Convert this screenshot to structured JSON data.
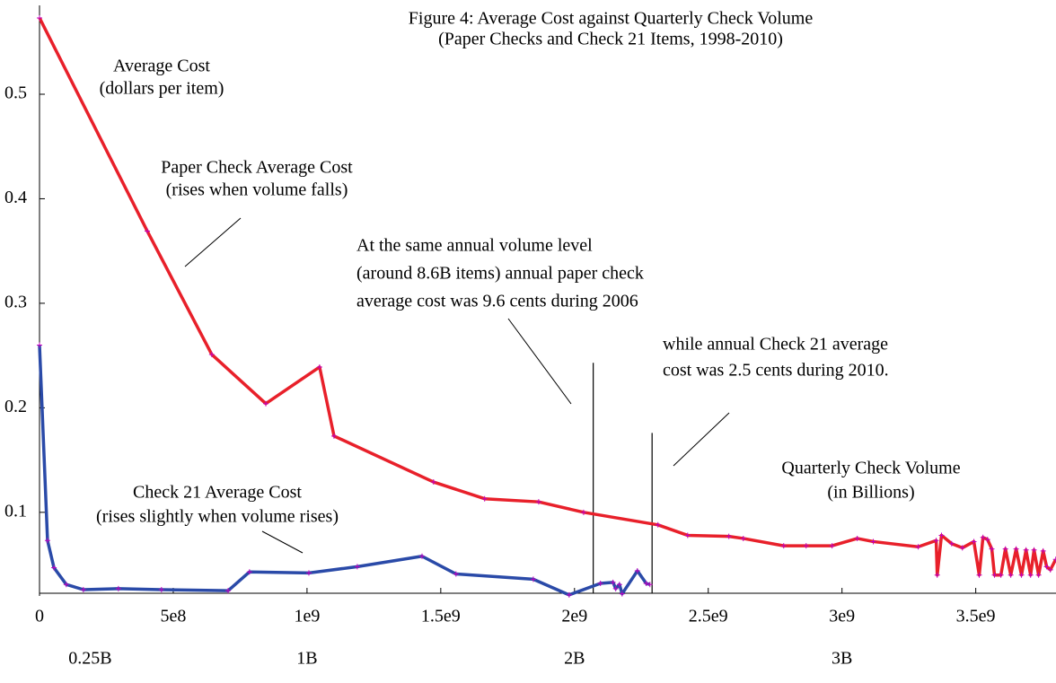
{
  "chart_data": {
    "type": "line",
    "title": "Figure 4: Average Cost against Quarterly Check Volume",
    "subtitle": "(Paper Checks and Check 21 Items, 1998-2010)",
    "ylabel": [
      "Average Cost",
      "(dollars per item)"
    ],
    "xlabel": [
      "Quarterly Check Volume",
      "(in Billions)"
    ],
    "annotations": [
      [
        "Paper Check Average Cost",
        "(rises when volume falls)"
      ],
      [
        "At the same annual volume level",
        "(around 8.6B items) annual paper check",
        "average cost was 9.6 cents during 2006"
      ],
      [
        "while annual Check 21 average",
        "cost was 2.5 cents during 2010."
      ],
      [
        "Check 21 Average Cost",
        "(rises slightly when volume rises)"
      ]
    ],
    "xlim": [
      0,
      3800000000
    ],
    "ylim": [
      0.02,
      0.585
    ],
    "xticks": [
      0,
      {
        "value": 500000000,
        "label": "5e8"
      },
      {
        "value": 1000000000,
        "label": "1e9"
      },
      {
        "value": 1500000000,
        "label": "1.5e9"
      },
      {
        "value": 2000000000,
        "label": "2e9"
      },
      {
        "value": 2500000000,
        "label": "2.5e9"
      },
      {
        "value": 3000000000,
        "label": "3e9"
      },
      {
        "value": 3500000000,
        "label": "3.5e9"
      }
    ],
    "xticks2": [
      {
        "value": 250000000,
        "label": "0.25B"
      },
      {
        "value": 1000000000,
        "label": "1B"
      },
      {
        "value": 2000000000,
        "label": "2B"
      },
      {
        "value": 3000000000,
        "label": "3B"
      }
    ],
    "yticks": [
      0.1,
      0.2,
      0.3,
      0.4,
      0.5
    ],
    "vlines": [
      {
        "x": 2070000000,
        "top": 0.243
      },
      {
        "x": 2290000000,
        "top": 0.176
      }
    ],
    "marker_color": "#c000c0",
    "series": [
      {
        "name": "Paper Check Average Cost",
        "color": "#e8202a",
        "x": [
          0,
          403000000,
          644000000,
          846000000,
          1047000000,
          1101000000,
          1473000000,
          1664000000,
          1866000000,
          2034000000,
          2312000000,
          2423000000,
          2577000000,
          2631000000,
          2782000000,
          2866000000,
          2963000000,
          3057000000,
          3117000000,
          3285000000,
          3352000000,
          3356000000,
          3372000000,
          3410000000,
          3450000000,
          3493000000,
          3513000000,
          3527000000,
          3544000000,
          3560000000,
          3570000000,
          3594000000,
          3611000000,
          3631000000,
          3651000000,
          3671000000,
          3688000000,
          3705000000,
          3718000000,
          3735000000,
          3752000000,
          3765000000,
          3779000000,
          3799000000
        ],
        "values": [
          0.573,
          0.369,
          0.251,
          0.204,
          0.239,
          0.173,
          0.129,
          0.113,
          0.11,
          0.1,
          0.088,
          0.078,
          0.077,
          0.075,
          0.068,
          0.068,
          0.068,
          0.075,
          0.072,
          0.067,
          0.073,
          0.04,
          0.078,
          0.07,
          0.066,
          0.072,
          0.04,
          0.076,
          0.074,
          0.065,
          0.04,
          0.04,
          0.065,
          0.04,
          0.065,
          0.04,
          0.064,
          0.04,
          0.064,
          0.04,
          0.063,
          0.048,
          0.045,
          0.055
        ]
      },
      {
        "name": "Check 21 Average Cost",
        "color": "#2a4aa8",
        "x": [
          0,
          30000000,
          54000000,
          100000000,
          164000000,
          295000000,
          456000000,
          705000000,
          785000000,
          1007000000,
          1188000000,
          1430000000,
          1557000000,
          1846000000,
          1980000000,
          2097000000,
          2144000000,
          2154000000,
          2168000000,
          2178000000,
          2235000000,
          2268000000,
          2282000000
        ],
        "values": [
          0.26,
          0.073,
          0.047,
          0.031,
          0.026,
          0.027,
          0.026,
          0.025,
          0.043,
          0.042,
          0.048,
          0.058,
          0.041,
          0.036,
          0.021,
          0.032,
          0.033,
          0.027,
          0.031,
          0.022,
          0.044,
          0.032,
          0.031
        ]
      }
    ]
  }
}
